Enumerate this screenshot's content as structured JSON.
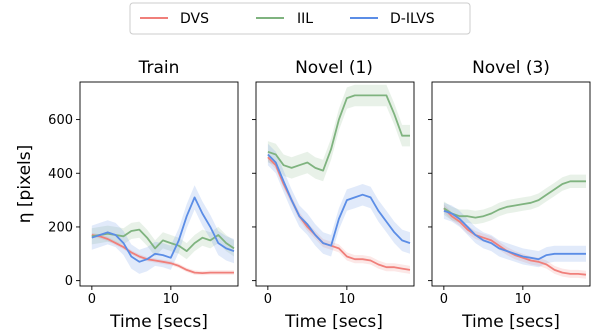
{
  "chart_data": {
    "type": "line",
    "ylabel": "η [pixels]",
    "xlabel": "Time [secs]",
    "xlim": [
      -1.5,
      18.5
    ],
    "ylim": [
      -20,
      740
    ],
    "xticks": [
      0,
      10
    ],
    "yticks": [
      0,
      200,
      400,
      600
    ],
    "grid": false,
    "legend": {
      "placement": "top-center",
      "entries": [
        {
          "name": "DVS",
          "color": "#f07f7a"
        },
        {
          "name": "IIL",
          "color": "#7fb37f"
        },
        {
          "name": "D-ILVS",
          "color": "#5b8de6"
        }
      ]
    },
    "panels": [
      {
        "title": "Train",
        "series": [
          {
            "name": "DVS",
            "x": [
              0,
              1,
              2,
              3,
              4,
              5,
              6,
              7,
              8,
              9,
              10,
              11,
              12,
              13,
              14,
              15,
              16,
              17,
              18
            ],
            "y": [
              170,
              165,
              155,
              140,
              125,
              105,
              90,
              80,
              75,
              70,
              65,
              55,
              40,
              30,
              28,
              30,
              30,
              30,
              30
            ],
            "band": 8
          },
          {
            "name": "IIL",
            "x": [
              0,
              1,
              2,
              3,
              4,
              5,
              6,
              7,
              8,
              9,
              10,
              11,
              12,
              13,
              14,
              15,
              16,
              17,
              18
            ],
            "y": [
              165,
              170,
              175,
              170,
              165,
              185,
              190,
              160,
              120,
              150,
              140,
              130,
              110,
              140,
              160,
              150,
              170,
              140,
              120
            ],
            "band": 30
          },
          {
            "name": "D-ILVS",
            "x": [
              0,
              1,
              2,
              3,
              4,
              5,
              6,
              7,
              8,
              9,
              10,
              11,
              12,
              13,
              14,
              15,
              16,
              17,
              18
            ],
            "y": [
              160,
              170,
              180,
              170,
              140,
              90,
              70,
              80,
              100,
              95,
              85,
              150,
              240,
              310,
              250,
              200,
              140,
              120,
              110
            ],
            "band": 45
          }
        ]
      },
      {
        "title": "Novel (1)",
        "series": [
          {
            "name": "DVS",
            "x": [
              0,
              1,
              2,
              3,
              4,
              5,
              6,
              7,
              8,
              9,
              10,
              11,
              12,
              13,
              14,
              15,
              16,
              17,
              18
            ],
            "y": [
              460,
              430,
              360,
              300,
              240,
              200,
              170,
              140,
              130,
              120,
              90,
              80,
              80,
              75,
              60,
              50,
              50,
              45,
              40
            ],
            "band": 15
          },
          {
            "name": "IIL",
            "x": [
              0,
              1,
              2,
              3,
              4,
              5,
              6,
              7,
              8,
              9,
              10,
              11,
              12,
              13,
              14,
              15,
              16,
              17,
              18
            ],
            "y": [
              480,
              470,
              430,
              420,
              430,
              440,
              420,
              410,
              490,
              600,
              680,
              690,
              690,
              690,
              690,
              690,
              620,
              540,
              540
            ],
            "band": 40
          },
          {
            "name": "D-ILVS",
            "x": [
              0,
              1,
              2,
              3,
              4,
              5,
              6,
              7,
              8,
              9,
              10,
              11,
              12,
              13,
              14,
              15,
              16,
              17,
              18
            ],
            "y": [
              470,
              440,
              370,
              300,
              240,
              210,
              170,
              140,
              130,
              230,
              300,
              310,
              320,
              310,
              260,
              220,
              180,
              150,
              140
            ],
            "band": 40
          }
        ]
      },
      {
        "title": "Novel (3)",
        "series": [
          {
            "name": "DVS",
            "x": [
              0,
              1,
              2,
              3,
              4,
              5,
              6,
              7,
              8,
              9,
              10,
              11,
              12,
              13,
              14,
              15,
              16,
              17,
              18
            ],
            "y": [
              270,
              240,
              220,
              190,
              170,
              160,
              150,
              130,
              110,
              95,
              85,
              75,
              70,
              60,
              40,
              30,
              25,
              25,
              22
            ],
            "band": 15
          },
          {
            "name": "IIL",
            "x": [
              0,
              1,
              2,
              3,
              4,
              5,
              6,
              7,
              8,
              9,
              10,
              11,
              12,
              13,
              14,
              15,
              16,
              17,
              18
            ],
            "y": [
              270,
              250,
              240,
              240,
              235,
              240,
              250,
              265,
              275,
              280,
              285,
              290,
              300,
              320,
              340,
              360,
              370,
              370,
              370
            ],
            "band": 25
          },
          {
            "name": "D-ILVS",
            "x": [
              0,
              1,
              2,
              3,
              4,
              5,
              6,
              7,
              8,
              9,
              10,
              11,
              12,
              13,
              14,
              15,
              16,
              17,
              18
            ],
            "y": [
              260,
              250,
              230,
              200,
              170,
              150,
              140,
              120,
              110,
              100,
              90,
              85,
              80,
              95,
              100,
              100,
              100,
              100,
              100
            ],
            "band": 30
          }
        ]
      }
    ]
  }
}
